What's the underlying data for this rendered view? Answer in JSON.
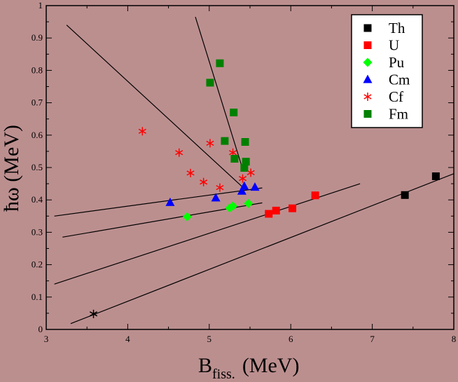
{
  "chart_data": {
    "type": "scatter",
    "title": "",
    "xlabel": "B",
    "xlabel_sub": "fiss.",
    "xlabel_unit": "(MeV)",
    "ylabel": "ħω (MeV)",
    "xlim": [
      3,
      8
    ],
    "ylim": [
      0,
      1
    ],
    "xticks": [
      3,
      4,
      5,
      6,
      7,
      8
    ],
    "yticks": [
      0,
      0.1,
      0.2,
      0.3,
      0.4,
      0.5,
      0.6,
      0.7,
      0.8,
      0.9,
      1
    ],
    "grid": false,
    "legend_position": "top-right",
    "series": [
      {
        "name": "Th",
        "marker": "square",
        "color": "#000000",
        "points": [
          [
            7.4,
            0.415
          ],
          [
            7.78,
            0.473
          ]
        ]
      },
      {
        "name": "U",
        "marker": "square",
        "color": "#ff0000",
        "points": [
          [
            5.73,
            0.357
          ],
          [
            5.82,
            0.367
          ],
          [
            6.02,
            0.374
          ],
          [
            6.3,
            0.414
          ]
        ]
      },
      {
        "name": "Pu",
        "marker": "diamond",
        "color": "#00ff00",
        "points": [
          [
            4.73,
            0.348
          ],
          [
            5.25,
            0.375
          ],
          [
            5.29,
            0.381
          ],
          [
            5.48,
            0.389
          ]
        ]
      },
      {
        "name": "Cm",
        "marker": "triangle",
        "color": "#0000ff",
        "points": [
          [
            4.52,
            0.392
          ],
          [
            5.08,
            0.406
          ],
          [
            5.4,
            0.427
          ],
          [
            5.43,
            0.442
          ],
          [
            5.56,
            0.439
          ]
        ]
      },
      {
        "name": "Cf",
        "marker": "asterisk",
        "color": "#ff0000",
        "points": [
          [
            4.18,
            0.612
          ],
          [
            4.63,
            0.546
          ],
          [
            4.77,
            0.483
          ],
          [
            4.93,
            0.455
          ],
          [
            5.01,
            0.575
          ],
          [
            5.13,
            0.438
          ],
          [
            5.29,
            0.546
          ],
          [
            5.41,
            0.466
          ],
          [
            5.51,
            0.484
          ]
        ]
      },
      {
        "name": "Fm",
        "marker": "square",
        "color": "#008000",
        "points": [
          [
            5.01,
            0.762
          ],
          [
            5.13,
            0.822
          ],
          [
            5.19,
            0.582
          ],
          [
            5.3,
            0.67
          ],
          [
            5.31,
            0.527
          ],
          [
            5.43,
            0.499
          ],
          [
            5.44,
            0.579
          ],
          [
            5.45,
            0.518
          ]
        ]
      }
    ],
    "extra_points": [
      {
        "marker": "asterisk",
        "color": "#000000",
        "x": 3.58,
        "y": 0.048
      }
    ],
    "lines": [
      {
        "x": [
          3.25,
          5.42
        ],
        "y": [
          0.94,
          0.437
        ]
      },
      {
        "x": [
          4.83,
          5.42
        ],
        "y": [
          0.965,
          0.487
        ]
      },
      {
        "x": [
          3.1,
          5.65
        ],
        "y": [
          0.35,
          0.437
        ]
      },
      {
        "x": [
          3.2,
          5.65
        ],
        "y": [
          0.285,
          0.391
        ]
      },
      {
        "x": [
          3.1,
          6.85
        ],
        "y": [
          0.14,
          0.45
        ]
      },
      {
        "x": [
          3.3,
          8.0
        ],
        "y": [
          0.018,
          0.481
        ]
      }
    ]
  }
}
